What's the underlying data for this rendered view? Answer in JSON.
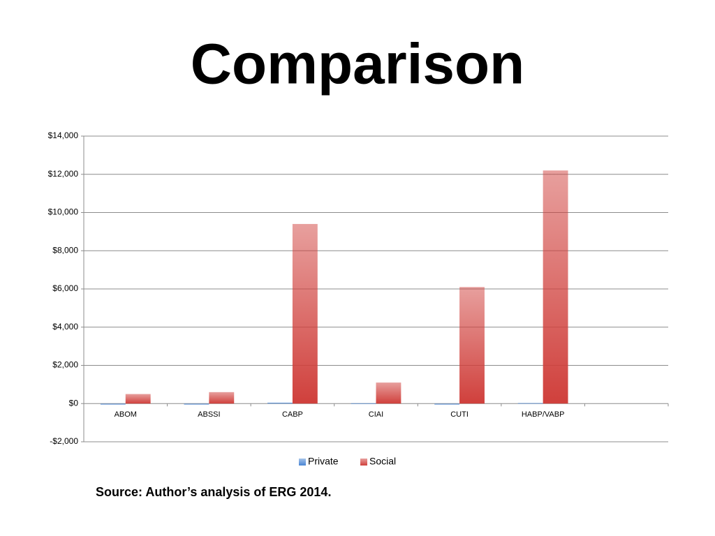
{
  "chart_data": {
    "type": "bar",
    "title": "Comparison",
    "categories": [
      "ABOM",
      "ABSSI",
      "CABP",
      "CIAI",
      "CUTI",
      "HABP/VABP",
      null
    ],
    "series": [
      {
        "name": "Private",
        "color": "#4a86d4",
        "values": [
          -50,
          -50,
          50,
          20,
          -50,
          30,
          null
        ]
      },
      {
        "name": "Social",
        "color": "#d0403c",
        "values": [
          500,
          600,
          9400,
          1100,
          6100,
          12200,
          null
        ]
      }
    ],
    "ylim": [
      -2000,
      14000
    ],
    "yticks": [
      {
        "value": -2000,
        "label": "-$2,000"
      },
      {
        "value": 0,
        "label": "$0"
      },
      {
        "value": 2000,
        "label": "$2,000"
      },
      {
        "value": 4000,
        "label": "$4,000"
      },
      {
        "value": 6000,
        "label": "$6,000"
      },
      {
        "value": 8000,
        "label": "$8,000"
      },
      {
        "value": 10000,
        "label": "$10,000"
      },
      {
        "value": 12000,
        "label": "$12,000"
      },
      {
        "value": 14000,
        "label": "$14,000"
      }
    ],
    "grid": true,
    "legend": "bottom",
    "source": "Source:  Author’s analysis of ERG 2014."
  }
}
